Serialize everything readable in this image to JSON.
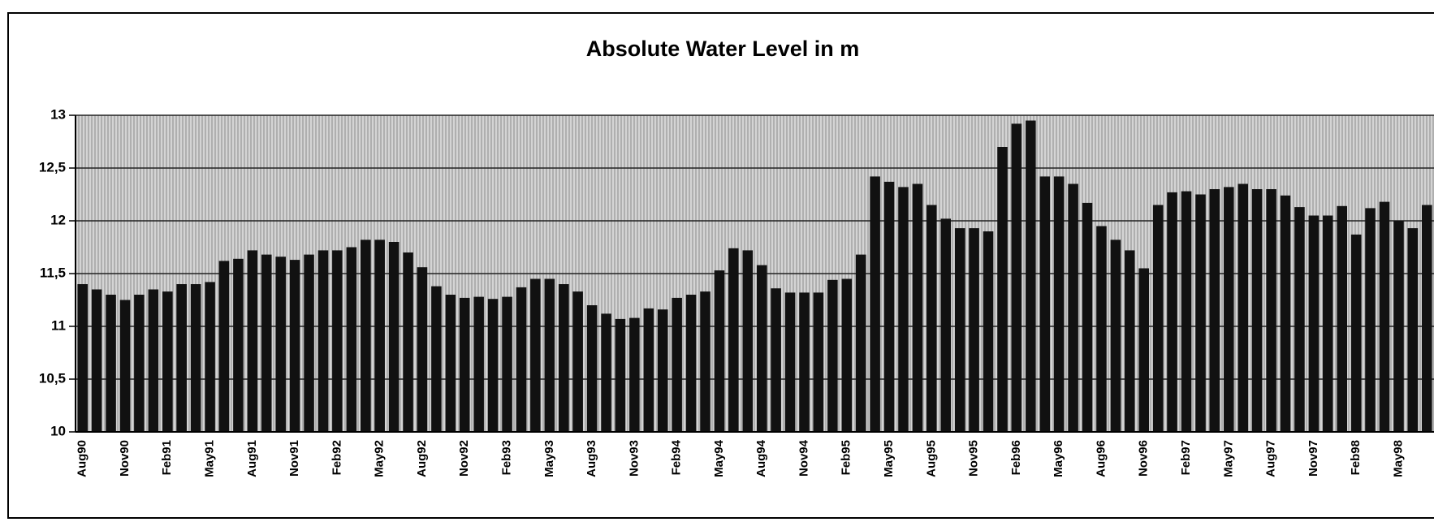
{
  "chart_data": {
    "type": "bar",
    "title": "Absolute Water Level in m",
    "color": "#111111",
    "grid": true,
    "ylim": [
      10,
      13
    ],
    "yticks": [
      10,
      {
        "value": 10.5,
        "label": "10,5"
      },
      11,
      {
        "value": 11.5,
        "label": "11,5"
      },
      12,
      {
        "value": 12.5,
        "label": "12,5"
      },
      13
    ],
    "categories": [
      "Aug90",
      null,
      null,
      "Nov90",
      null,
      null,
      "Feb91",
      null,
      null,
      "May91",
      null,
      null,
      "Aug91",
      null,
      null,
      "Nov91",
      null,
      null,
      "Feb92",
      null,
      null,
      "May92",
      null,
      null,
      "Aug92",
      null,
      null,
      "Nov92",
      null,
      null,
      "Feb93",
      null,
      null,
      "May93",
      null,
      null,
      "Aug93",
      null,
      null,
      "Nov93",
      null,
      null,
      "Feb94",
      null,
      null,
      "May94",
      null,
      null,
      "Aug94",
      null,
      null,
      "Nov94",
      null,
      null,
      "Feb95",
      null,
      null,
      "May95",
      null,
      null,
      "Aug95",
      null,
      null,
      "Nov95",
      null,
      null,
      "Feb96",
      null,
      null,
      "May96",
      null,
      null,
      "Aug96",
      null,
      null,
      "Nov96",
      null,
      null,
      "Feb97",
      null,
      null,
      "May97",
      null,
      null,
      "Aug97",
      null,
      null,
      "Nov97",
      null,
      null,
      "Feb98",
      null,
      null,
      "May98",
      null,
      null
    ],
    "values": [
      11.4,
      11.35,
      11.3,
      11.25,
      11.3,
      11.35,
      11.33,
      11.4,
      11.4,
      11.42,
      11.62,
      11.64,
      11.72,
      11.68,
      11.66,
      11.63,
      11.68,
      11.72,
      11.72,
      11.75,
      11.82,
      11.82,
      11.8,
      11.7,
      11.56,
      11.38,
      11.3,
      11.27,
      11.28,
      11.26,
      11.28,
      11.37,
      11.45,
      11.45,
      11.4,
      11.33,
      11.2,
      11.12,
      11.07,
      11.08,
      11.17,
      11.16,
      11.27,
      11.3,
      11.33,
      11.53,
      11.74,
      11.72,
      11.58,
      11.36,
      11.32,
      11.32,
      11.32,
      11.44,
      11.45,
      11.68,
      12.42,
      12.37,
      12.32,
      12.35,
      12.15,
      12.02,
      11.93,
      11.93,
      11.9,
      12.7,
      12.92,
      12.95,
      12.42,
      12.42,
      12.35,
      12.17,
      11.95,
      11.82,
      11.72,
      11.55,
      12.15,
      12.27,
      12.28,
      12.25,
      12.3,
      12.32,
      12.35,
      12.3,
      12.3,
      12.24,
      12.13,
      12.05,
      12.05,
      12.14,
      11.87,
      12.12,
      12.18,
      12.0,
      11.93,
      12.15
    ]
  }
}
